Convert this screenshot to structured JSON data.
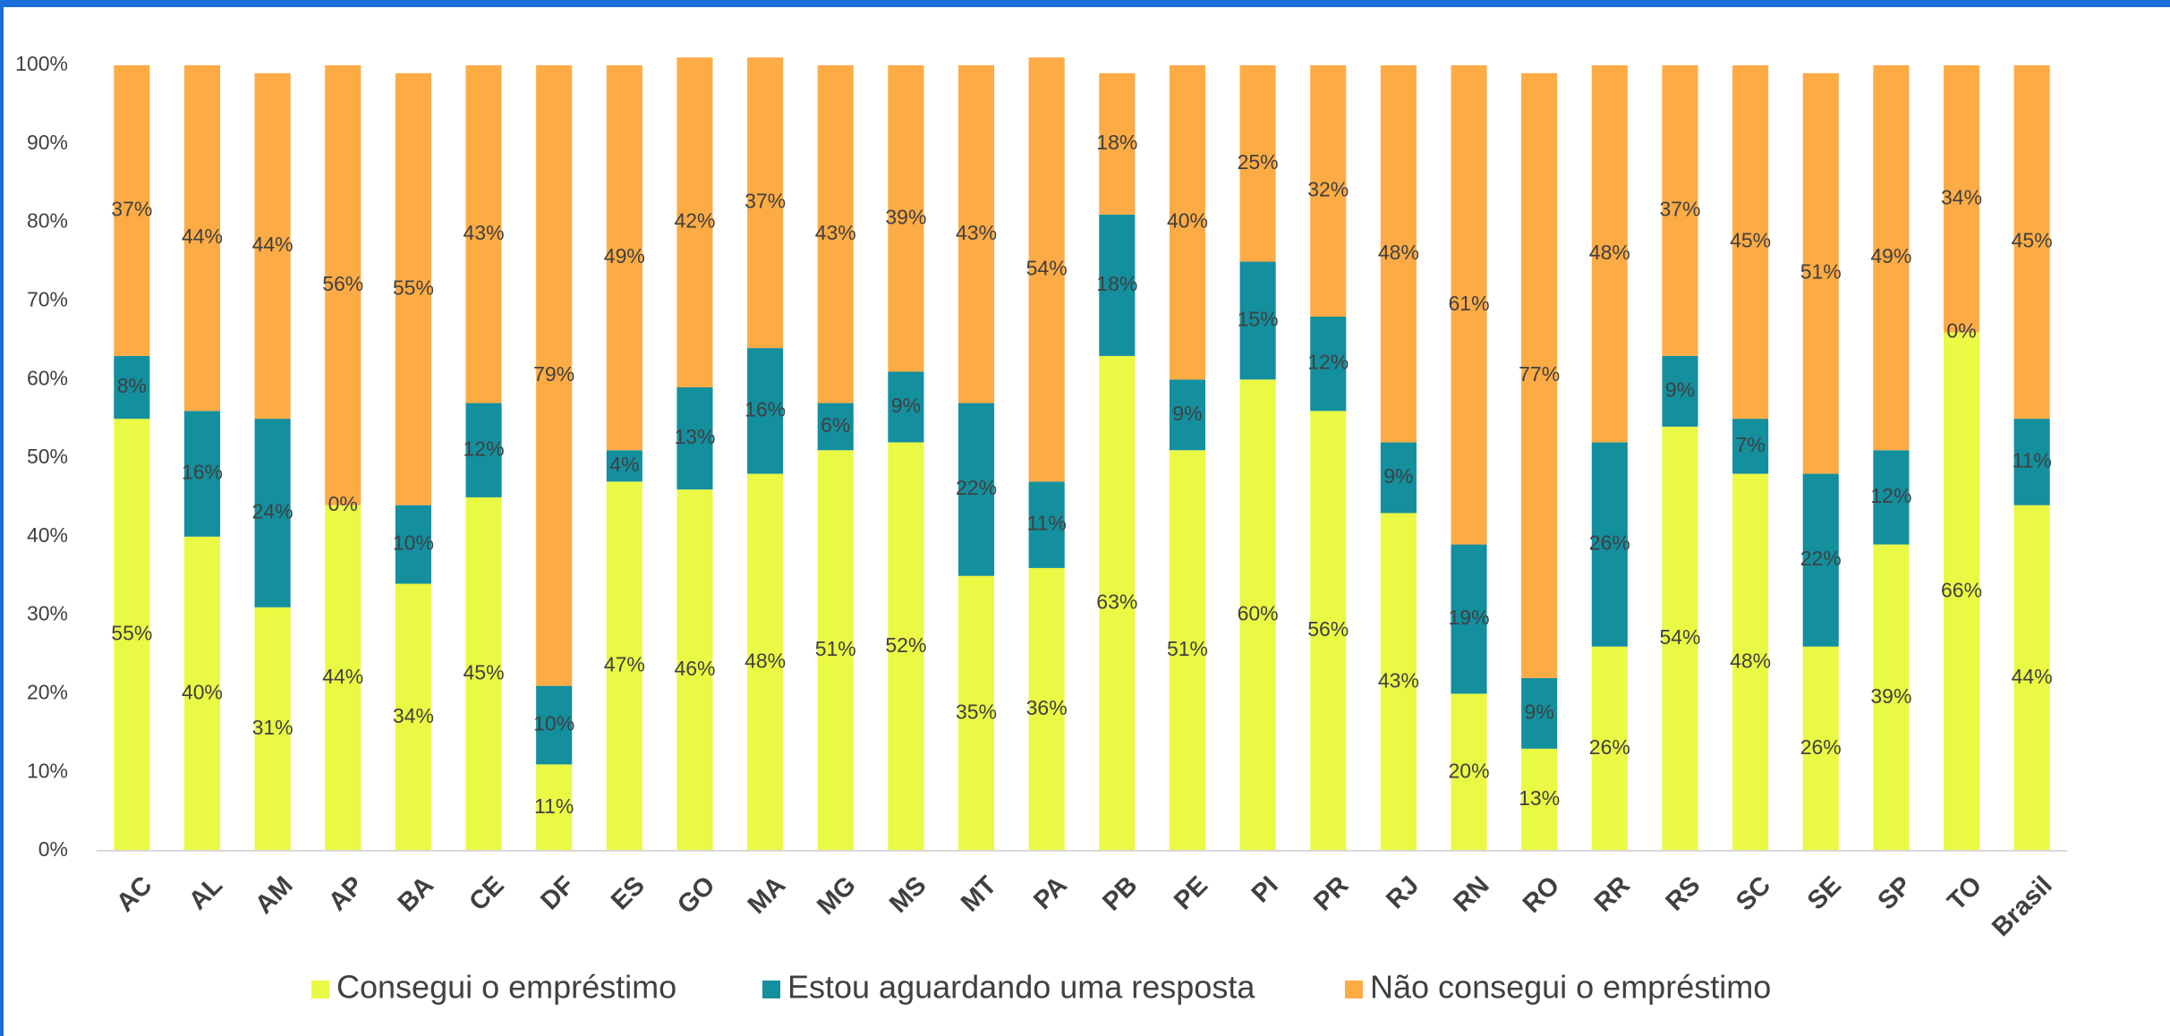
{
  "chart_data": {
    "type": "stacked_bar",
    "categories": [
      "AC",
      "AL",
      "AM",
      "AP",
      "BA",
      "CE",
      "DF",
      "ES",
      "GO",
      "MA",
      "MG",
      "MS",
      "MT",
      "PA",
      "PB",
      "PE",
      "PI",
      "PR",
      "RJ",
      "RN",
      "RO",
      "RR",
      "RS",
      "SC",
      "SE",
      "SP",
      "TO",
      "Brasil"
    ],
    "series": [
      {
        "name": "Consegui o empréstimo",
        "color": "#eaf944",
        "values": [
          55,
          40,
          31,
          44,
          34,
          45,
          11,
          47,
          46,
          48,
          51,
          52,
          35,
          36,
          63,
          51,
          60,
          56,
          43,
          20,
          13,
          26,
          54,
          48,
          26,
          39,
          66,
          44
        ],
        "value_labels": [
          "55%",
          "40%",
          "31%",
          "44%",
          "34%",
          "45%",
          "11%",
          "47%",
          "46%",
          "48%",
          "51%",
          "52%",
          "35%",
          "36%",
          "63%",
          "51%",
          "60%",
          "56%",
          "43%",
          "20%",
          "13%",
          "26%",
          "54%",
          "48%",
          "26%",
          "39%",
          "66%",
          "44%"
        ]
      },
      {
        "name": "Estou aguardando uma resposta",
        "color": "#138f9e",
        "values": [
          8,
          16,
          24,
          0,
          10,
          12,
          10,
          4,
          13,
          16,
          6,
          9,
          22,
          11,
          18,
          9,
          15,
          12,
          9,
          19,
          9,
          26,
          9,
          7,
          22,
          12,
          0,
          11
        ],
        "value_labels": [
          "8%",
          "16%",
          "24%",
          "0%",
          "10%",
          "12%",
          "10%",
          "4%",
          "13%",
          "16%",
          "6%",
          "9%",
          "22%",
          "11%",
          "18%",
          "9%",
          "15%",
          "12%",
          "9%",
          "19%",
          "9%",
          "26%",
          "9%",
          "7%",
          "22%",
          "12%",
          "0%",
          "11%"
        ]
      },
      {
        "name": "Não consegui o empréstimo",
        "color": "#fdab45",
        "values": [
          37,
          44,
          44,
          56,
          55,
          43,
          79,
          49,
          42,
          37,
          43,
          39,
          43,
          54,
          18,
          40,
          25,
          32,
          48,
          61,
          77,
          48,
          37,
          45,
          51,
          49,
          34,
          45
        ],
        "value_labels": [
          "37%",
          "44%",
          "44%",
          "56%",
          "55%",
          "43%",
          "79%",
          "49%",
          "42%",
          "37%",
          "43%",
          "39%",
          "43%",
          "54%",
          "18%",
          "40%",
          "25%",
          "32%",
          "48%",
          "61%",
          "77%",
          "48%",
          "37%",
          "45%",
          "51%",
          "49%",
          "34%",
          "45%"
        ]
      }
    ],
    "ylim": [
      0,
      100
    ],
    "yticks": [
      {
        "value": 0,
        "label": "0%"
      },
      {
        "value": 10,
        "label": "10%"
      },
      {
        "value": 20,
        "label": "20%"
      },
      {
        "value": 30,
        "label": "30%"
      },
      {
        "value": 40,
        "label": "40%"
      },
      {
        "value": 50,
        "label": "50%"
      },
      {
        "value": 60,
        "label": "60%"
      },
      {
        "value": 70,
        "label": "70%"
      },
      {
        "value": 80,
        "label": "80%"
      },
      {
        "value": 90,
        "label": "90%"
      },
      {
        "value": 100,
        "label": "100%"
      }
    ],
    "legend": "bottom"
  }
}
